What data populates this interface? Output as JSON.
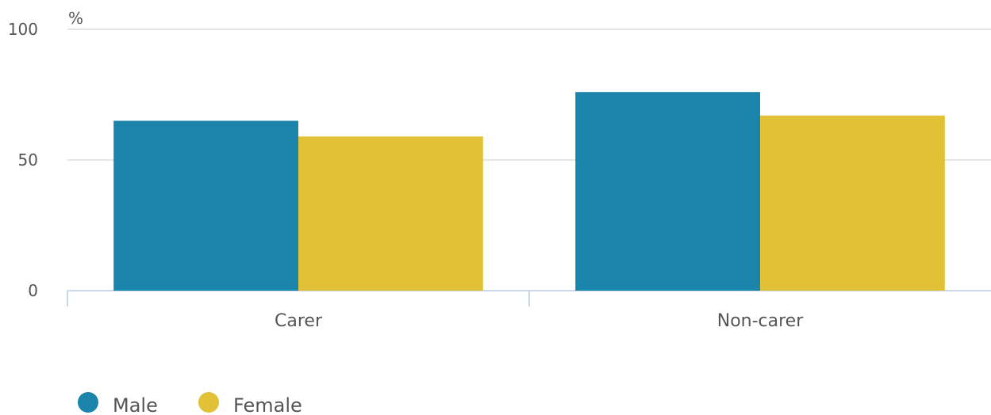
{
  "chart_data": {
    "type": "bar",
    "unit_label": "%",
    "categories": [
      "Carer",
      "Non-carer"
    ],
    "series": [
      {
        "name": "Male",
        "color": "#1b84ab",
        "values": [
          65,
          76
        ]
      },
      {
        "name": "Female",
        "color": "#e1c136",
        "values": [
          59,
          67
        ]
      }
    ],
    "ylim": [
      0,
      100
    ],
    "yticks": [
      0,
      50,
      100
    ],
    "grid": true,
    "legend_position": "bottom-left"
  }
}
